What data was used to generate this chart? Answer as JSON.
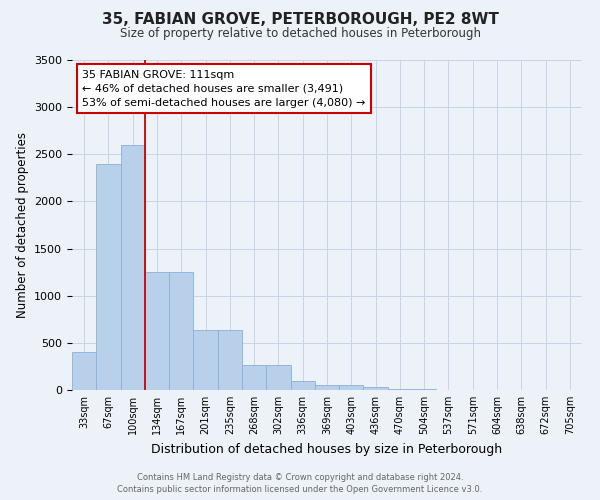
{
  "title": "35, FABIAN GROVE, PETERBOROUGH, PE2 8WT",
  "subtitle": "Size of property relative to detached houses in Peterborough",
  "xlabel": "Distribution of detached houses by size in Peterborough",
  "ylabel": "Number of detached properties",
  "bar_labels": [
    "33sqm",
    "67sqm",
    "100sqm",
    "134sqm",
    "167sqm",
    "201sqm",
    "235sqm",
    "268sqm",
    "302sqm",
    "336sqm",
    "369sqm",
    "403sqm",
    "436sqm",
    "470sqm",
    "504sqm",
    "537sqm",
    "571sqm",
    "604sqm",
    "638sqm",
    "672sqm",
    "705sqm"
  ],
  "bar_values": [
    400,
    2400,
    2600,
    1250,
    1250,
    635,
    635,
    270,
    270,
    100,
    55,
    55,
    30,
    15,
    10,
    5,
    3,
    2,
    1,
    1,
    0
  ],
  "bar_color": "#b8d0ea",
  "bar_edge_color": "#8ab0d8",
  "grid_color": "#c5d5e8",
  "background_color": "#edf2f9",
  "red_line_x": 2.5,
  "annotation_line1": "35 FABIAN GROVE: 111sqm",
  "annotation_line2": "← 46% of detached houses are smaller (3,491)",
  "annotation_line3": "53% of semi-detached houses are larger (4,080) →",
  "annotation_box_facecolor": "#ffffff",
  "annotation_box_edgecolor": "#cc0000",
  "ylim": [
    0,
    3500
  ],
  "yticks": [
    0,
    500,
    1000,
    1500,
    2000,
    2500,
    3000,
    3500
  ],
  "footer_line1": "Contains HM Land Registry data © Crown copyright and database right 2024.",
  "footer_line2": "Contains public sector information licensed under the Open Government Licence v3.0."
}
